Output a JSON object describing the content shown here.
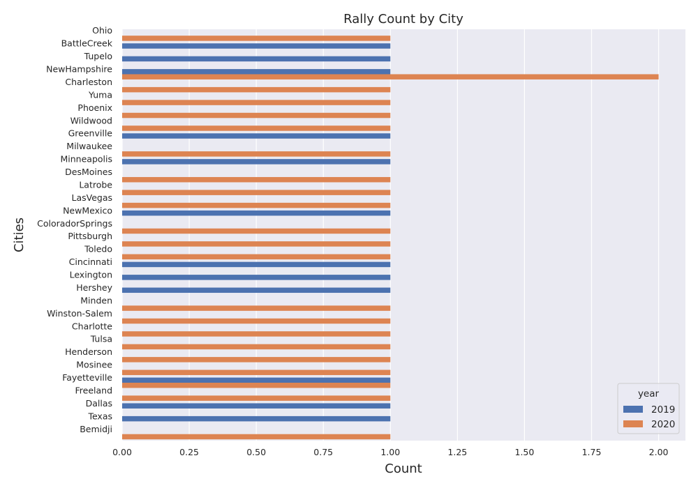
{
  "chart_data": {
    "type": "bar",
    "orientation": "horizontal",
    "title": "Rally Count by City",
    "xlabel": "Count",
    "ylabel": "Cities",
    "xlim": [
      0,
      2.1
    ],
    "xticks": [
      "0.00",
      "0.25",
      "0.50",
      "0.75",
      "1.00",
      "1.25",
      "1.50",
      "1.75",
      "2.00"
    ],
    "xtick_values": [
      0,
      0.25,
      0.5,
      0.75,
      1.0,
      1.25,
      1.5,
      1.75,
      2.0
    ],
    "grid": true,
    "legend_title": "year",
    "legend_position": "bottom-right",
    "categories": [
      "Ohio",
      "BattleCreek",
      "Tupelo",
      "NewHampshire",
      "Charleston",
      "Yuma",
      "Phoenix",
      "Wildwood",
      "Greenville",
      "Milwaukee",
      "Minneapolis",
      "DesMoines",
      "Latrobe",
      "LasVegas",
      "NewMexico",
      "ColoradorSprings",
      "Pittsburgh",
      "Toledo",
      "Cincinnati",
      "Lexington",
      "Hershey",
      "Minden",
      "Winston-Salem",
      "Charlotte",
      "Tulsa",
      "Henderson",
      "Mosinee",
      "Fayetteville",
      "Freeland",
      "Dallas",
      "Texas",
      "Bemidji"
    ],
    "series": [
      {
        "name": "2019",
        "color": "#4c72b0",
        "values": [
          null,
          1,
          1,
          1,
          null,
          null,
          null,
          null,
          1,
          null,
          1,
          null,
          null,
          null,
          1,
          null,
          null,
          null,
          1,
          1,
          1,
          null,
          null,
          null,
          null,
          null,
          null,
          1,
          null,
          1,
          1,
          null
        ]
      },
      {
        "name": "2020",
        "color": "#dd8452",
        "values": [
          1,
          null,
          null,
          2,
          1,
          1,
          1,
          1,
          null,
          1,
          null,
          1,
          1,
          1,
          null,
          1,
          1,
          1,
          null,
          null,
          null,
          1,
          1,
          1,
          1,
          1,
          1,
          1,
          1,
          null,
          null,
          1
        ]
      }
    ],
    "background_color": "#eaeaf2",
    "grid_color": "#ffffff"
  }
}
